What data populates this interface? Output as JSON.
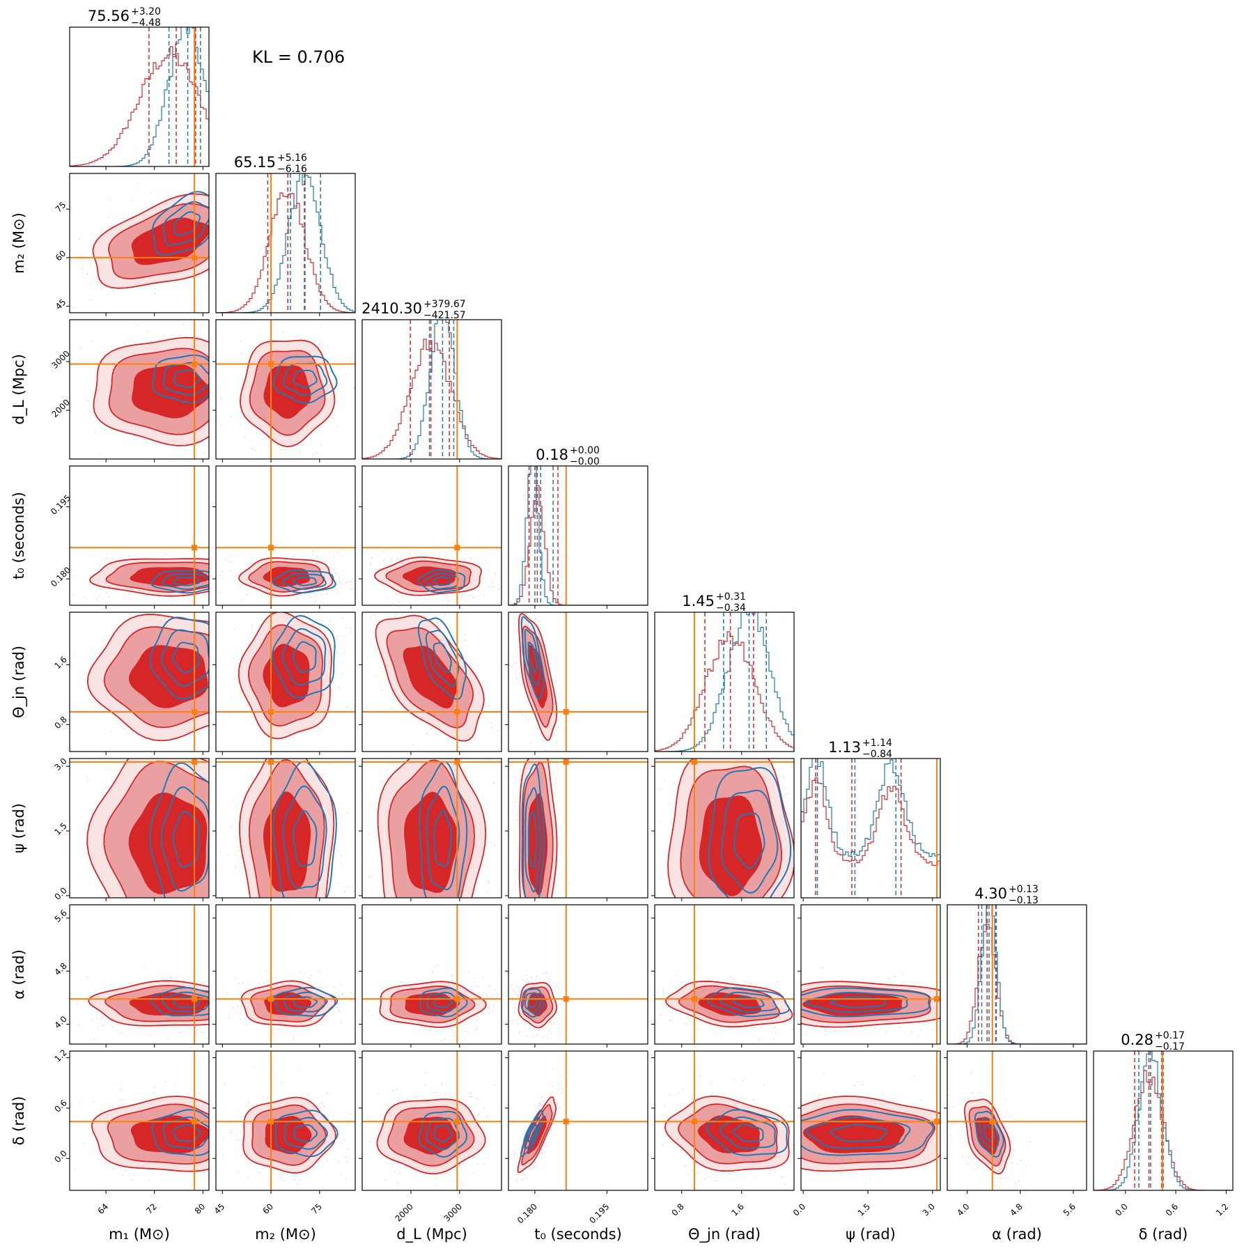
{
  "chart_data": {
    "type": "corner",
    "kl_text": "KL = 0.706",
    "colors": {
      "red": "#d62728",
      "red_light": "#eaa0a0",
      "blue": "#1f77b4",
      "truth": "#ff7f0e"
    },
    "params": [
      {
        "name": "m1",
        "label": "m₁ (M⊙)",
        "range": [
          58,
          81
        ],
        "ticks": [
          64,
          72,
          80
        ],
        "tick_labels": [
          "64",
          "72",
          "80"
        ],
        "truth": 78.6,
        "red_mean": 74.5,
        "red_sd": 5.0,
        "blue_mean": 77.3,
        "blue_sd": 3.0,
        "title": "75.56",
        "plus": "+3.20",
        "minus": "−4.48",
        "red_q": [
          71.1,
          75.6,
          78.8
        ],
        "blue_q": [
          74.4,
          77.5,
          79.6
        ]
      },
      {
        "name": "m2",
        "label": "m₂ (M⊙)",
        "range": [
          43,
          86
        ],
        "ticks": [
          45,
          60,
          75
        ],
        "tick_labels": [
          "45",
          "60",
          "75"
        ],
        "truth": 60,
        "red_mean": 65.0,
        "red_sd": 5.5,
        "blue_mean": 70.5,
        "blue_sd": 5.0,
        "title": "65.15",
        "plus": "+5.16",
        "minus": "−6.16",
        "red_q": [
          59.0,
          65.2,
          70.3
        ],
        "blue_q": [
          66.0,
          70.5,
          75.3
        ]
      },
      {
        "name": "dL",
        "label": "d_L (Mpc)",
        "range": [
          1000,
          3860
        ],
        "ticks": [
          2000,
          3000
        ],
        "tick_labels": [
          "2000",
          "3000"
        ],
        "truth": 2950,
        "red_mean": 2400,
        "red_sd": 420,
        "blue_mean": 2650,
        "blue_sd": 250,
        "title": "2410.30",
        "plus": "+379.67",
        "minus": "−421.57",
        "red_q": [
          1988,
          2410,
          2790
        ],
        "blue_q": [
          2380,
          2650,
          2880
        ]
      },
      {
        "name": "t0",
        "label": "t₀ (seconds)",
        "range": [
          0.1745,
          0.2035
        ],
        "ticks": [
          0.18,
          0.195
        ],
        "tick_labels": [
          "0.180",
          "0.195"
        ],
        "truth": 0.1865,
        "red_mean": 0.1805,
        "red_sd": 0.0015,
        "blue_mean": 0.1795,
        "blue_sd": 0.0012,
        "title": "0.18",
        "plus": "+0.00",
        "minus": "−0.00",
        "red_q": [
          0.1788,
          0.1805,
          0.1848
        ],
        "blue_q": [
          0.18,
          0.1812,
          0.1838
        ]
      },
      {
        "name": "thetajn",
        "label": "Θ_jn (rad)",
        "range": [
          0.44,
          2.3
        ],
        "ticks": [
          0.8,
          1.6
        ],
        "tick_labels": [
          "0.8",
          "1.6"
        ],
        "truth": 0.97,
        "red_mean": 1.45,
        "red_sd": 0.32,
        "blue_mean": 1.7,
        "blue_sd": 0.28,
        "title": "1.45",
        "plus": "+0.31",
        "minus": "−0.34",
        "red_q": [
          1.11,
          1.45,
          1.76
        ],
        "blue_q": [
          1.36,
          1.7,
          1.93
        ]
      },
      {
        "name": "psi",
        "label": "ψ (rad)",
        "range": [
          -0.05,
          3.18
        ],
        "ticks": [
          0.0,
          1.5,
          3.0
        ],
        "tick_labels": [
          "0.0",
          "1.5",
          "3.0"
        ],
        "truth": 3.1,
        "red_mean": 1.2,
        "red_sd": 0.9,
        "blue_mean": 1.3,
        "blue_sd": 0.9,
        "title": "1.13",
        "plus": "+1.14",
        "minus": "−0.84",
        "red_q": [
          0.29,
          1.13,
          2.27
        ],
        "blue_q": [
          0.33,
          1.2,
          2.15
        ]
      },
      {
        "name": "alpha",
        "label": "α (rad)",
        "range": [
          3.7,
          5.8
        ],
        "ticks": [
          4.0,
          4.8,
          5.6
        ],
        "tick_labels": [
          "4.0",
          "4.8",
          "5.6"
        ],
        "truth": 4.38,
        "red_mean": 4.3,
        "red_sd": 0.13,
        "blue_mean": 4.33,
        "blue_sd": 0.11,
        "title": "4.30",
        "plus": "+0.13",
        "minus": "−0.13",
        "red_q": [
          4.17,
          4.3,
          4.43
        ],
        "blue_q": [
          4.22,
          4.33,
          4.44
        ]
      },
      {
        "name": "delta",
        "label": "δ (rad)",
        "range": [
          -0.38,
          1.28
        ],
        "ticks": [
          0.0,
          0.6,
          1.2
        ],
        "tick_labels": [
          "0.0",
          "0.6",
          "1.2"
        ],
        "truth": 0.44,
        "red_mean": 0.28,
        "red_sd": 0.17,
        "blue_mean": 0.3,
        "blue_sd": 0.14,
        "title": "0.28",
        "plus": "+0.17",
        "minus": "−0.17",
        "red_q": [
          0.11,
          0.28,
          0.45
        ],
        "blue_q": [
          0.16,
          0.3,
          0.43
        ]
      }
    ],
    "correlations": [
      [
        0,
        1,
        0.45
      ],
      [
        0,
        2,
        0.0
      ],
      [
        0,
        3,
        0.0
      ],
      [
        0,
        4,
        0.0
      ],
      [
        0,
        5,
        0.0
      ],
      [
        0,
        6,
        0.0
      ],
      [
        0,
        7,
        0.0
      ],
      [
        1,
        2,
        0.0
      ],
      [
        1,
        3,
        0.0
      ],
      [
        1,
        4,
        0.0
      ],
      [
        1,
        5,
        0.0
      ],
      [
        1,
        6,
        0.0
      ],
      [
        1,
        7,
        0.0
      ],
      [
        2,
        3,
        0.0
      ],
      [
        2,
        4,
        -0.55
      ],
      [
        2,
        5,
        0.0
      ],
      [
        2,
        6,
        0.0
      ],
      [
        2,
        7,
        0.0
      ],
      [
        3,
        4,
        -0.65
      ],
      [
        3,
        5,
        0.0
      ],
      [
        3,
        6,
        0.0
      ],
      [
        3,
        7,
        0.85
      ],
      [
        4,
        5,
        0.0
      ],
      [
        4,
        6,
        -0.25
      ],
      [
        4,
        7,
        -0.2
      ],
      [
        5,
        6,
        0.0
      ],
      [
        5,
        7,
        0.0
      ],
      [
        6,
        7,
        -0.45
      ]
    ]
  }
}
